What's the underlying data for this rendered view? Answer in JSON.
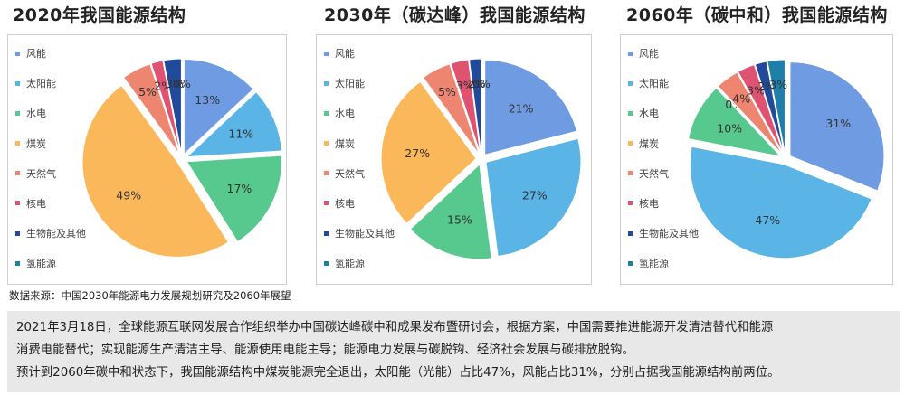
{
  "colors": {
    "wind": "#6f9be3",
    "solar": "#5ab4e6",
    "hydro": "#58c98e",
    "coal": "#fbb85a",
    "gas": "#ee8570",
    "nuclear": "#e05272",
    "bio": "#214a9a",
    "hydrogen": "#1f7fa8"
  },
  "legend_labels": [
    "风能",
    "太阳能",
    "水电",
    "煤炭",
    "天然气",
    "核电",
    "生物能及其他",
    "氢能源"
  ],
  "chart_data": [
    {
      "type": "pie",
      "title": "2020年我国能源结构",
      "categories": [
        "风能",
        "太阳能",
        "水电",
        "煤炭",
        "天然气",
        "核电",
        "生物能及其他",
        "氢能源"
      ],
      "values": [
        13,
        11,
        17,
        49,
        5,
        2,
        3,
        0
      ],
      "labels": [
        "13%",
        "11%",
        "17%",
        "49%",
        "5%",
        "2%",
        "3%",
        "0%"
      ],
      "legend": "left"
    },
    {
      "type": "pie",
      "title": "2030年（碳达峰）我国能源结构",
      "categories": [
        "风能",
        "太阳能",
        "水电",
        "煤炭",
        "天然气",
        "核电",
        "生物能及其他",
        "氢能源"
      ],
      "values": [
        21,
        27,
        15,
        27,
        5,
        3,
        2,
        0
      ],
      "labels": [
        "21%",
        "27%",
        "15%",
        "27%",
        "5%",
        "3%",
        "2%",
        "0%"
      ],
      "legend": "left"
    },
    {
      "type": "pie",
      "title": "2060年（碳中和）我国能源结构",
      "categories": [
        "风能",
        "太阳能",
        "水电",
        "煤炭",
        "天然气",
        "核电",
        "生物能及其他",
        "氢能源"
      ],
      "values": [
        31,
        47,
        10,
        0,
        4,
        3,
        2,
        3
      ],
      "labels": [
        "31%",
        "47%",
        "10%",
        "0%",
        "4%",
        "3%",
        "2%",
        "3%"
      ],
      "legend": "left"
    }
  ],
  "source_text": "数据来源：中国2030年能源电力发展规划研究及2060年展望",
  "note_lines": [
    "2021年3月18日，全球能源互联网发展合作组织举办中国碳达峰碳中和成果发布暨研讨会，根据方案，中国需要推进能源开发清洁替代和能源",
    "消费电能替代；实现能源生产清洁主导、能源使用电能主导；能源电力发展与碳脱钩、经济社会发展与碳排放脱钩。",
    "预计到2060年碳中和状态下，我国能源结构中煤炭能源完全退出，太阳能（光能）占比47%，风能占比31%，分别占据我国能源结构前两位。"
  ]
}
